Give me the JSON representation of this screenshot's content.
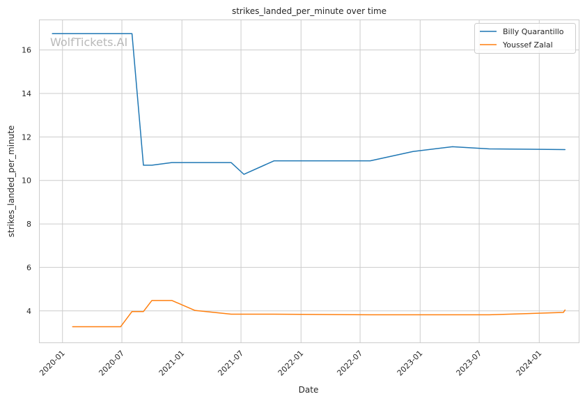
{
  "chart_data": {
    "type": "line",
    "title": "strikes_landed_per_minute over time",
    "xlabel": "Date",
    "ylabel": "strikes_landed_per_minute",
    "watermark": "WolfTickets.AI",
    "x_range": [
      "2019-10-21",
      "2024-05-01"
    ],
    "ylim": [
      2.55,
      17.4
    ],
    "x_ticks": [
      "2020-01",
      "2020-07",
      "2021-01",
      "2021-07",
      "2022-01",
      "2022-07",
      "2023-01",
      "2023-07",
      "2024-01"
    ],
    "y_ticks": [
      4,
      6,
      8,
      10,
      12,
      14,
      16
    ],
    "grid": true,
    "legend_position": "top-right",
    "series": [
      {
        "name": "Billy Quarantillo",
        "color": "#1f77b4",
        "points": [
          {
            "x": "2019-12-01",
            "y": 16.75
          },
          {
            "x": "2020-08-01",
            "y": 16.75
          },
          {
            "x": "2020-09-05",
            "y": 10.7
          },
          {
            "x": "2020-10-01",
            "y": 10.7
          },
          {
            "x": "2020-12-01",
            "y": 10.82
          },
          {
            "x": "2021-06-01",
            "y": 10.82
          },
          {
            "x": "2021-07-10",
            "y": 10.28
          },
          {
            "x": "2021-10-10",
            "y": 10.9
          },
          {
            "x": "2022-08-01",
            "y": 10.9
          },
          {
            "x": "2022-12-10",
            "y": 11.33
          },
          {
            "x": "2023-04-10",
            "y": 11.55
          },
          {
            "x": "2023-08-01",
            "y": 11.45
          },
          {
            "x": "2024-03-20",
            "y": 11.42
          }
        ]
      },
      {
        "name": "Youssef Zalal",
        "color": "#ff7f0e",
        "points": [
          {
            "x": "2020-02-01",
            "y": 3.27
          },
          {
            "x": "2020-06-27",
            "y": 3.27
          },
          {
            "x": "2020-08-01",
            "y": 3.97
          },
          {
            "x": "2020-09-05",
            "y": 3.97
          },
          {
            "x": "2020-10-01",
            "y": 4.48
          },
          {
            "x": "2020-12-01",
            "y": 4.48
          },
          {
            "x": "2021-02-10",
            "y": 4.02
          },
          {
            "x": "2021-06-01",
            "y": 3.85
          },
          {
            "x": "2021-10-10",
            "y": 3.85
          },
          {
            "x": "2022-08-01",
            "y": 3.82
          },
          {
            "x": "2023-08-01",
            "y": 3.82
          },
          {
            "x": "2024-03-15",
            "y": 3.93
          },
          {
            "x": "2024-03-20",
            "y": 4.04
          }
        ]
      }
    ]
  }
}
